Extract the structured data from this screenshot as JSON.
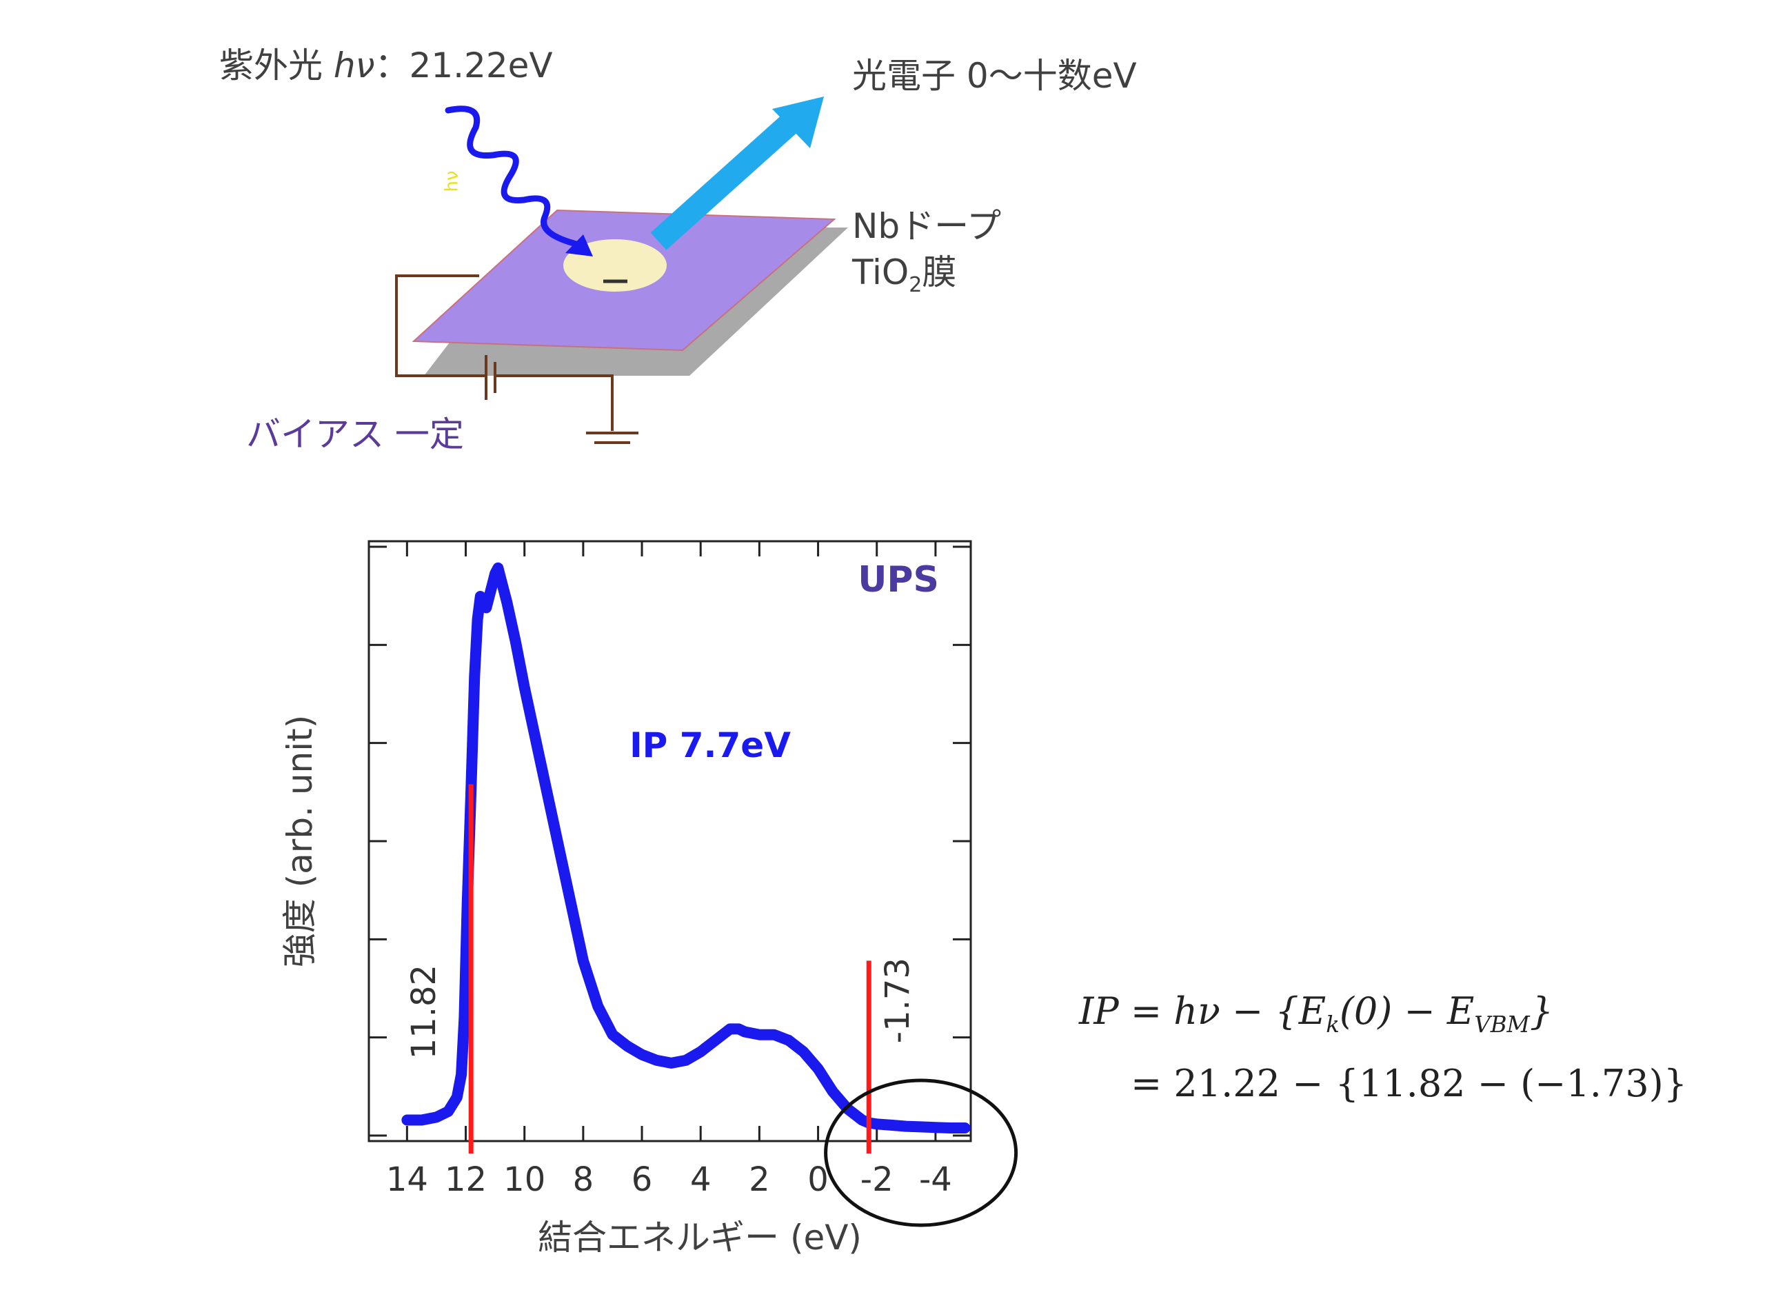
{
  "diagram": {
    "uv_label_prefix": "紫外光 ",
    "uv_label_hv": "hν",
    "uv_label_suffix": "：21.22eV",
    "photoelectron_label": "光電子 0〜十数eV",
    "film_label_line1": "Nbドープ",
    "film_label_line2_pre": "TiO",
    "film_label_line2_sub": "2",
    "film_label_line2_post": "膜",
    "bias_label": "バイアス 一定",
    "small_hv": "hν",
    "electron_symbol": "－",
    "colors": {
      "film": "#a78be8",
      "photon": "#1a1aee",
      "electron_arrow": "#22aaee",
      "spot": "#f8efc0",
      "wire": "#6b3a1e"
    }
  },
  "chart_data": {
    "type": "line",
    "title": "",
    "xlabel": "結合エネルギー (eV)",
    "ylabel": "強度 (arb. unit)",
    "x_reversed": true,
    "xlim": [
      15.3,
      -5.2
    ],
    "ylim": [
      0,
      1.02
    ],
    "x_ticks": [
      14,
      12,
      10,
      8,
      6,
      4,
      2,
      0,
      -2,
      -4
    ],
    "x_tick_labels": [
      "14",
      "12",
      "10",
      "8",
      "6",
      "4",
      "2",
      "0",
      "-2",
      "-4"
    ],
    "y_tick_count": 6,
    "series": [
      {
        "color": "#1a1aee",
        "x": [
          14.0,
          13.5,
          13.0,
          12.6,
          12.3,
          12.15,
          12.05,
          11.95,
          11.82,
          11.7,
          11.6,
          11.5,
          11.4,
          11.3,
          11.2,
          11.1,
          11.0,
          10.9,
          10.8,
          10.6,
          10.3,
          10.0,
          9.5,
          9.0,
          8.5,
          8.0,
          7.5,
          7.0,
          6.5,
          6.0,
          5.5,
          5.0,
          4.5,
          4.0,
          3.5,
          3.0,
          2.7,
          2.5,
          2.0,
          1.5,
          1.0,
          0.5,
          0.0,
          -0.5,
          -1.0,
          -1.5,
          -1.73,
          -2.0,
          -2.5,
          -3.0,
          -3.5,
          -4.0,
          -4.5,
          -5.0
        ],
        "y": [
          0.02,
          0.02,
          0.025,
          0.035,
          0.06,
          0.1,
          0.2,
          0.4,
          0.6,
          0.8,
          0.9,
          0.94,
          0.93,
          0.92,
          0.94,
          0.96,
          0.98,
          0.99,
          0.97,
          0.93,
          0.86,
          0.78,
          0.66,
          0.54,
          0.42,
          0.3,
          0.22,
          0.17,
          0.15,
          0.135,
          0.125,
          0.12,
          0.125,
          0.14,
          0.16,
          0.18,
          0.18,
          0.175,
          0.17,
          0.17,
          0.16,
          0.14,
          0.11,
          0.07,
          0.04,
          0.02,
          0.015,
          0.013,
          0.011,
          0.009,
          0.008,
          0.007,
          0.006,
          0.006
        ]
      }
    ],
    "markers": [
      {
        "x": 11.82,
        "label": "11.82",
        "color": "#ff1a1a",
        "y_top": 0.61
      },
      {
        "x": -1.73,
        "label": "-1.73",
        "color": "#ff1a1a",
        "y_top": 0.3
      }
    ],
    "annotations": {
      "top_right": "UPS",
      "middle": "IP 7.7eV"
    },
    "circle_highlight_center_x": -3.5,
    "grid": false
  },
  "formula": {
    "line1": "IP = hν − {E",
    "line1_sub1": "k",
    "line1_mid": "(0) − E",
    "line1_sub2": "VBM",
    "line1_end": "}",
    "line2": "= 21.22 − {11.82 − (−1.73)}"
  }
}
